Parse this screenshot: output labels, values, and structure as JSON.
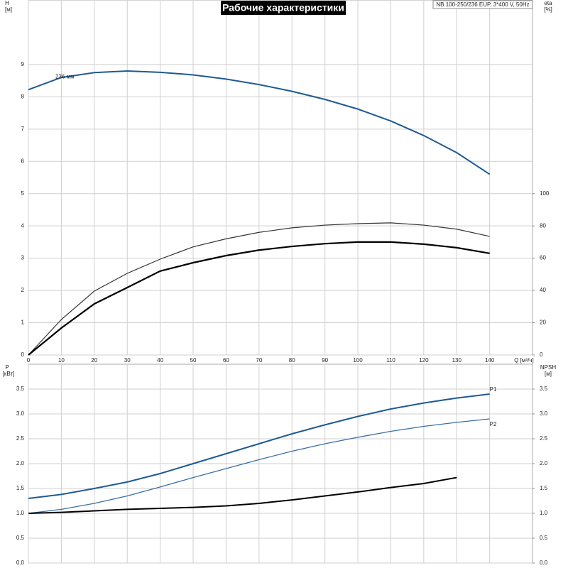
{
  "chart_data": [
    {
      "type": "line",
      "title": "Рабочие характеристики",
      "subtitle": "NB 100-250/236 EUP, 3*400 V, 50Hz",
      "ylabel": "H",
      "yunit": "[м]",
      "y2label": "eta",
      "y2unit": "[%]",
      "xlabel": "Q [м³/ч]",
      "x": [
        0,
        10,
        20,
        30,
        40,
        50,
        60,
        70,
        80,
        90,
        100,
        110,
        120,
        130,
        140
      ],
      "series": [
        {
          "name": "236 мм",
          "color": "#1f5a94",
          "line_width": 2,
          "label_at": "start",
          "values": [
            8.22,
            8.6,
            8.75,
            8.8,
            8.76,
            8.68,
            8.55,
            8.38,
            8.17,
            7.92,
            7.62,
            7.25,
            6.8,
            6.27,
            5.6
          ]
        },
        {
          "color": "#333333",
          "line_width": 1.2,
          "axis": "y2",
          "values": [
            0,
            22,
            39.6,
            50.6,
            59.4,
            67,
            72,
            76,
            78.8,
            80.5,
            81.4,
            81.9,
            80.5,
            78,
            73.5
          ]
        },
        {
          "color": "#000000",
          "line_width": 2.2,
          "axis": "y2",
          "values": [
            0,
            16.7,
            31.7,
            41.8,
            52,
            57.2,
            61.6,
            65,
            67.3,
            69,
            70,
            70,
            68.7,
            66.5,
            63
          ]
        }
      ],
      "xlim": [
        0,
        153
      ],
      "xticks": [
        0,
        10,
        20,
        30,
        40,
        50,
        60,
        70,
        80,
        90,
        100,
        110,
        120,
        130,
        140
      ],
      "ylim": [
        0,
        11
      ],
      "yticks": [
        0,
        1,
        2,
        3,
        4,
        5,
        6,
        7,
        8,
        9
      ],
      "y2lim": [
        0,
        220
      ],
      "y2ticks": [
        0,
        20,
        40,
        60,
        80,
        100
      ],
      "grid": true,
      "xtick_labels": true
    },
    {
      "type": "line",
      "ylabel": "P",
      "yunit": "[кВт]",
      "y2label": "NPSH",
      "y2unit": "[м]",
      "x": [
        0,
        10,
        20,
        30,
        40,
        50,
        60,
        70,
        80,
        90,
        100,
        110,
        120,
        130,
        140
      ],
      "series": [
        {
          "name": "P1",
          "color": "#1f5a94",
          "line_width": 2,
          "label_at": "end",
          "values": [
            1.3,
            1.38,
            1.5,
            1.63,
            1.8,
            2.0,
            2.2,
            2.4,
            2.6,
            2.78,
            2.95,
            3.1,
            3.22,
            3.32,
            3.4
          ]
        },
        {
          "name": "P2",
          "color": "#3a6ea5",
          "line_width": 1.3,
          "label_at": "end",
          "values": [
            1.0,
            1.08,
            1.2,
            1.35,
            1.53,
            1.72,
            1.9,
            2.08,
            2.25,
            2.4,
            2.53,
            2.65,
            2.75,
            2.83,
            2.9
          ]
        },
        {
          "color": "#000000",
          "line_width": 2,
          "axis": "y2",
          "values": [
            1.0,
            1.02,
            1.05,
            1.08,
            1.1,
            1.12,
            1.15,
            1.2,
            1.27,
            1.35,
            1.43,
            1.52,
            1.6,
            1.72,
            null
          ]
        }
      ],
      "xlim": [
        0,
        153
      ],
      "xticks": [
        0,
        10,
        20,
        30,
        40,
        50,
        60,
        70,
        80,
        90,
        100,
        110,
        120,
        130,
        140
      ],
      "ylim": [
        0,
        4
      ],
      "yticks": [
        {
          "value": 0,
          "label": "0.0"
        },
        0.5,
        {
          "value": 1,
          "label": "1.0"
        },
        1.5,
        {
          "value": 2,
          "label": "2.0"
        },
        2.5,
        {
          "value": 3,
          "label": "3.0"
        },
        3.5
      ],
      "y2lim": [
        0,
        4
      ],
      "y2ticks": [
        {
          "value": 0,
          "label": "0.0"
        },
        0.5,
        {
          "value": 1,
          "label": "1.0"
        },
        1.5,
        {
          "value": 2,
          "label": "2.0"
        },
        2.5,
        {
          "value": 3,
          "label": "3.0"
        },
        3.5
      ],
      "grid": true,
      "xtick_labels": false
    }
  ]
}
